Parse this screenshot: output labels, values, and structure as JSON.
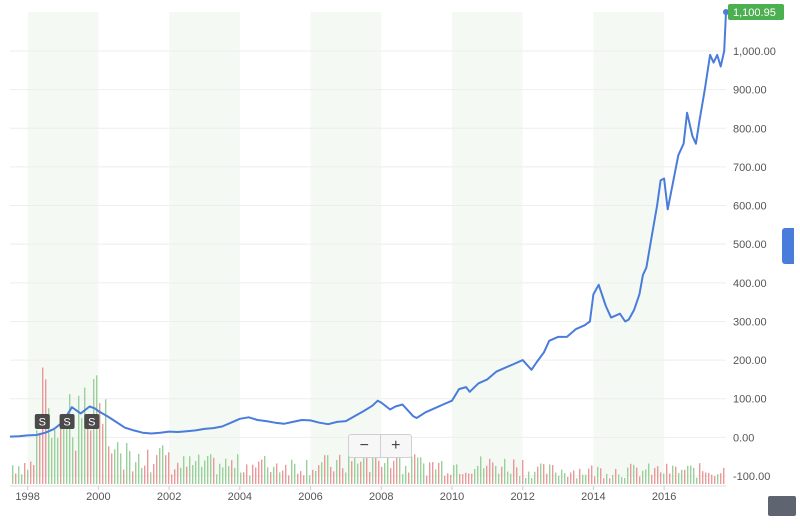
{
  "chart_data": {
    "type": "line",
    "x_ticks": [
      "1998",
      "2000",
      "2002",
      "2004",
      "2006",
      "2008",
      "2010",
      "2012",
      "2014",
      "2016"
    ],
    "y_ticks": [
      "1,000.00",
      "900.00",
      "800.00",
      "700.00",
      "600.00",
      "500.00",
      "400.00",
      "300.00",
      "200.00",
      "100.00",
      "0.00",
      "-100.00"
    ],
    "xlim": [
      1997.5,
      2017.75
    ],
    "ylim": [
      -100,
      1100.95
    ],
    "last_value_label": "1,100.95",
    "split_markers": [
      {
        "label": "S",
        "x": 1998.4
      },
      {
        "label": "S",
        "x": 1999.1
      },
      {
        "label": "S",
        "x": 1999.8
      }
    ],
    "shaded_bands": [
      [
        1998,
        2000
      ],
      [
        2002,
        2004
      ],
      [
        2006,
        2008
      ],
      [
        2010,
        2012
      ],
      [
        2014,
        2016
      ]
    ],
    "series": [
      {
        "color": "#4a7cdb",
        "points": [
          [
            1997.5,
            2
          ],
          [
            1997.75,
            3
          ],
          [
            1998.0,
            5
          ],
          [
            1998.25,
            6
          ],
          [
            1998.5,
            12
          ],
          [
            1998.75,
            22
          ],
          [
            1999.0,
            40
          ],
          [
            1999.25,
            78
          ],
          [
            1999.5,
            62
          ],
          [
            1999.75,
            80
          ],
          [
            1999.9,
            75
          ],
          [
            2000.0,
            68
          ],
          [
            2000.25,
            55
          ],
          [
            2000.5,
            40
          ],
          [
            2000.75,
            25
          ],
          [
            2001.0,
            18
          ],
          [
            2001.25,
            12
          ],
          [
            2001.5,
            10
          ],
          [
            2001.75,
            12
          ],
          [
            2002.0,
            15
          ],
          [
            2002.25,
            14
          ],
          [
            2002.5,
            16
          ],
          [
            2002.75,
            18
          ],
          [
            2003.0,
            22
          ],
          [
            2003.25,
            24
          ],
          [
            2003.5,
            28
          ],
          [
            2003.75,
            38
          ],
          [
            2004.0,
            48
          ],
          [
            2004.25,
            52
          ],
          [
            2004.5,
            45
          ],
          [
            2004.75,
            42
          ],
          [
            2005.0,
            38
          ],
          [
            2005.25,
            35
          ],
          [
            2005.5,
            40
          ],
          [
            2005.75,
            45
          ],
          [
            2006.0,
            44
          ],
          [
            2006.25,
            38
          ],
          [
            2006.5,
            34
          ],
          [
            2006.75,
            40
          ],
          [
            2007.0,
            42
          ],
          [
            2007.25,
            55
          ],
          [
            2007.5,
            68
          ],
          [
            2007.75,
            82
          ],
          [
            2007.9,
            95
          ],
          [
            2008.0,
            90
          ],
          [
            2008.25,
            72
          ],
          [
            2008.4,
            80
          ],
          [
            2008.6,
            85
          ],
          [
            2008.75,
            70
          ],
          [
            2008.9,
            55
          ],
          [
            2009.0,
            50
          ],
          [
            2009.25,
            65
          ],
          [
            2009.5,
            75
          ],
          [
            2009.75,
            85
          ],
          [
            2010.0,
            95
          ],
          [
            2010.2,
            125
          ],
          [
            2010.4,
            130
          ],
          [
            2010.5,
            118
          ],
          [
            2010.75,
            140
          ],
          [
            2011.0,
            150
          ],
          [
            2011.25,
            170
          ],
          [
            2011.5,
            180
          ],
          [
            2011.75,
            190
          ],
          [
            2012.0,
            200
          ],
          [
            2012.25,
            175
          ],
          [
            2012.4,
            195
          ],
          [
            2012.6,
            220
          ],
          [
            2012.75,
            250
          ],
          [
            2013.0,
            260
          ],
          [
            2013.25,
            260
          ],
          [
            2013.5,
            280
          ],
          [
            2013.75,
            290
          ],
          [
            2013.9,
            300
          ],
          [
            2014.0,
            370
          ],
          [
            2014.15,
            395
          ],
          [
            2014.35,
            340
          ],
          [
            2014.5,
            310
          ],
          [
            2014.75,
            320
          ],
          [
            2014.9,
            300
          ],
          [
            2015.0,
            305
          ],
          [
            2015.15,
            330
          ],
          [
            2015.3,
            370
          ],
          [
            2015.4,
            420
          ],
          [
            2015.5,
            440
          ],
          [
            2015.65,
            520
          ],
          [
            2015.8,
            600
          ],
          [
            2015.9,
            665
          ],
          [
            2016.0,
            670
          ],
          [
            2016.1,
            590
          ],
          [
            2016.25,
            660
          ],
          [
            2016.4,
            730
          ],
          [
            2016.55,
            760
          ],
          [
            2016.65,
            840
          ],
          [
            2016.8,
            780
          ],
          [
            2016.9,
            760
          ],
          [
            2017.0,
            820
          ],
          [
            2017.15,
            900
          ],
          [
            2017.3,
            990
          ],
          [
            2017.4,
            970
          ],
          [
            2017.5,
            990
          ],
          [
            2017.6,
            960
          ],
          [
            2017.7,
            1000
          ],
          [
            2017.75,
            1100.95
          ]
        ]
      }
    ]
  }
}
